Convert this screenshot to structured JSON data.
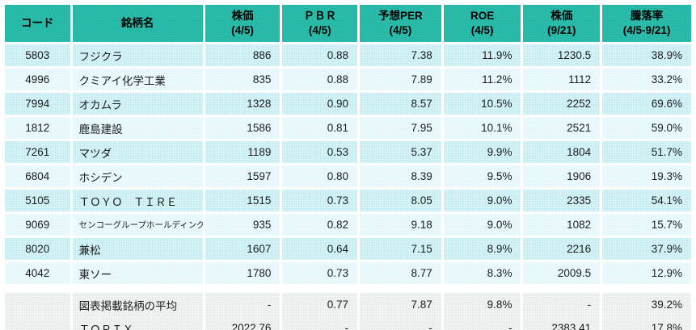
{
  "accent_colors": {
    "header_bg": "#29bcab",
    "row_odd_bg": "#c6edf2",
    "row_even_bg": "#e4f7fa",
    "summary_bg": "#e9edec",
    "text": "#1c1c1c"
  },
  "headers": [
    {
      "line1": "コード",
      "line2": ""
    },
    {
      "line1": "銘柄名",
      "line2": ""
    },
    {
      "line1": "株価",
      "line2": "(4/5)"
    },
    {
      "line1": "ＰＢＲ",
      "line2": "(4/5)"
    },
    {
      "line1": "予想PER",
      "line2": "(4/5)"
    },
    {
      "line1": "ROE",
      "line2": "(4/5)"
    },
    {
      "line1": "株価",
      "line2": "(9/21)"
    },
    {
      "line1": "騰落率",
      "line2": "(4/5-9/21)"
    }
  ],
  "chart_data": {
    "type": "table",
    "columns": [
      "コード",
      "銘柄名",
      "株価 (4/5)",
      "ＰＢＲ (4/5)",
      "予想PER (4/5)",
      "ROE (4/5)",
      "株価 (9/21)",
      "騰落率 (4/5-9/21)"
    ],
    "rows": [
      [
        "5803",
        "フジクラ",
        "886",
        "0.88",
        "7.38",
        "11.9%",
        "1230.5",
        "38.9%"
      ],
      [
        "4996",
        "クミアイ化学工業",
        "835",
        "0.88",
        "7.89",
        "11.2%",
        "1112",
        "33.2%"
      ],
      [
        "7994",
        "オカムラ",
        "1328",
        "0.90",
        "8.57",
        "10.5%",
        "2252",
        "69.6%"
      ],
      [
        "1812",
        "鹿島建設",
        "1586",
        "0.81",
        "7.95",
        "10.1%",
        "2521",
        "59.0%"
      ],
      [
        "7261",
        "マツダ",
        "1189",
        "0.53",
        "5.37",
        "9.9%",
        "1804",
        "51.7%"
      ],
      [
        "6804",
        "ホシデン",
        "1597",
        "0.80",
        "8.39",
        "9.5%",
        "1906",
        "19.3%"
      ],
      [
        "5105",
        "ＴＯＹＯ　ＴＩＲＥ",
        "1515",
        "0.73",
        "8.05",
        "9.0%",
        "2335",
        "54.1%"
      ],
      [
        "9069",
        "センコーグループホールディングス",
        "935",
        "0.82",
        "9.18",
        "9.0%",
        "1082",
        "15.7%"
      ],
      [
        "8020",
        "兼松",
        "1607",
        "0.64",
        "7.15",
        "8.9%",
        "2216",
        "37.9%"
      ],
      [
        "4042",
        "東ソー",
        "1780",
        "0.73",
        "8.77",
        "8.3%",
        "2009.5",
        "12.9%"
      ]
    ],
    "summary_rows": [
      [
        "",
        "図表掲載銘柄の平均",
        "-",
        "0.77",
        "7.87",
        "9.8%",
        "-",
        "39.2%"
      ],
      [
        "",
        "ＴＯＰＩＸ",
        "2022.76",
        "-",
        "-",
        "-",
        "2383.41",
        "17.8%"
      ]
    ]
  }
}
